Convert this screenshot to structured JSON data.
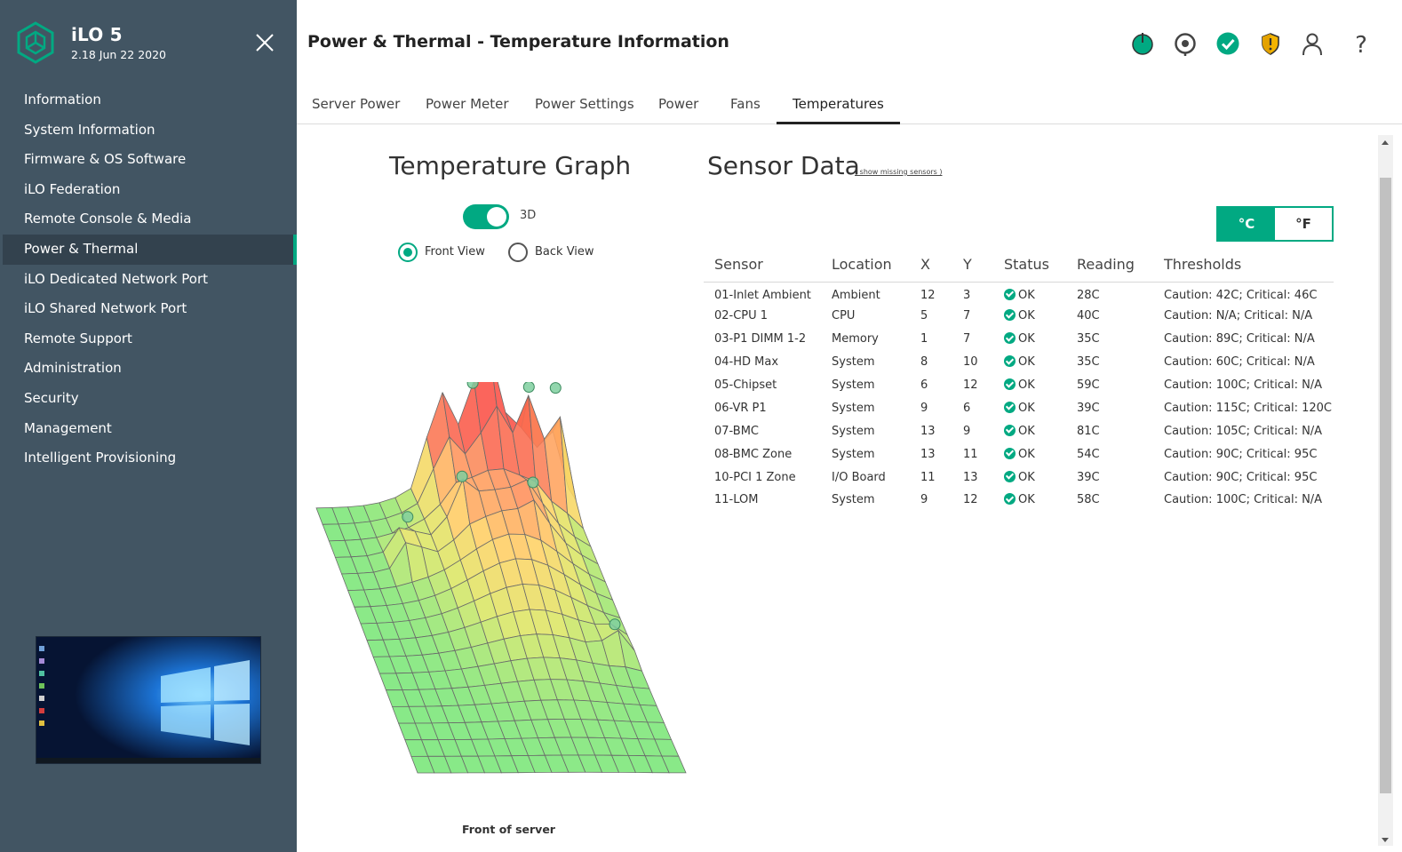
{
  "brand": {
    "title": "iLO 5",
    "version": "2.18 Jun 22 2020",
    "accent": "#01a982"
  },
  "sidebar": {
    "items": [
      {
        "label": "Information"
      },
      {
        "label": "System Information"
      },
      {
        "label": "Firmware & OS Software"
      },
      {
        "label": "iLO Federation"
      },
      {
        "label": "Remote Console & Media"
      },
      {
        "label": "Power & Thermal",
        "active": true
      },
      {
        "label": "iLO Dedicated Network Port"
      },
      {
        "label": "iLO Shared Network Port"
      },
      {
        "label": "Remote Support"
      },
      {
        "label": "Administration"
      },
      {
        "label": "Security"
      },
      {
        "label": "Management"
      },
      {
        "label": "Intelligent Provisioning"
      }
    ]
  },
  "header": {
    "title": "Power & Thermal - Temperature Information",
    "icons": [
      "power-icon",
      "locator-icon",
      "health-ok-icon",
      "security-shield-icon",
      "user-icon",
      "help-icon"
    ]
  },
  "tabs": [
    {
      "label": "Server Power"
    },
    {
      "label": "Power Meter"
    },
    {
      "label": "Power Settings"
    },
    {
      "label": "Power"
    },
    {
      "label": "Fans"
    },
    {
      "label": "Temperatures",
      "active": true
    }
  ],
  "graph": {
    "title": "Temperature Graph",
    "toggle_label": "3D",
    "toggle_on": true,
    "front_view_label": "Front View",
    "back_view_label": "Back View",
    "selected_view": "front",
    "footer": "Front of server"
  },
  "sensor_panel": {
    "title": "Sensor Data",
    "missing_link": "( show missing sensors )",
    "unit_c": "°C",
    "unit_f": "°F",
    "selected_unit": "C",
    "columns": [
      "Sensor",
      "Location",
      "X",
      "Y",
      "Status",
      "Reading",
      "Thresholds"
    ],
    "rows": [
      {
        "sensor": "01-Inlet Ambient",
        "location": "Ambient",
        "x": "12",
        "y": "3",
        "status": "OK",
        "reading": "28C",
        "thresholds": "Caution: 42C; Critical: 46C"
      },
      {
        "sensor": "02-CPU 1",
        "location": "CPU",
        "x": "5",
        "y": "7",
        "status": "OK",
        "reading": "40C",
        "thresholds": "Caution: N/A; Critical: N/A"
      },
      {
        "sensor": "03-P1 DIMM 1-2",
        "location": "Memory",
        "x": "1",
        "y": "7",
        "status": "OK",
        "reading": "35C",
        "thresholds": "Caution: 89C; Critical: N/A"
      },
      {
        "sensor": "04-HD Max",
        "location": "System",
        "x": "8",
        "y": "10",
        "status": "OK",
        "reading": "35C",
        "thresholds": "Caution: 60C; Critical: N/A"
      },
      {
        "sensor": "05-Chipset",
        "location": "System",
        "x": "6",
        "y": "12",
        "status": "OK",
        "reading": "59C",
        "thresholds": "Caution: 100C; Critical: N/A"
      },
      {
        "sensor": "06-VR P1",
        "location": "System",
        "x": "9",
        "y": "6",
        "status": "OK",
        "reading": "39C",
        "thresholds": "Caution: 115C; Critical: 120C"
      },
      {
        "sensor": "07-BMC",
        "location": "System",
        "x": "13",
        "y": "9",
        "status": "OK",
        "reading": "81C",
        "thresholds": "Caution: 105C; Critical: N/A"
      },
      {
        "sensor": "08-BMC Zone",
        "location": "System",
        "x": "13",
        "y": "11",
        "status": "OK",
        "reading": "54C",
        "thresholds": "Caution: 90C; Critical: 95C"
      },
      {
        "sensor": "10-PCI 1 Zone",
        "location": "I/O Board",
        "x": "11",
        "y": "13",
        "status": "OK",
        "reading": "39C",
        "thresholds": "Caution: 90C; Critical: 95C"
      },
      {
        "sensor": "11-LOM",
        "location": "System",
        "x": "9",
        "y": "12",
        "status": "OK",
        "reading": "58C",
        "thresholds": "Caution: 100C; Critical: N/A"
      }
    ]
  }
}
